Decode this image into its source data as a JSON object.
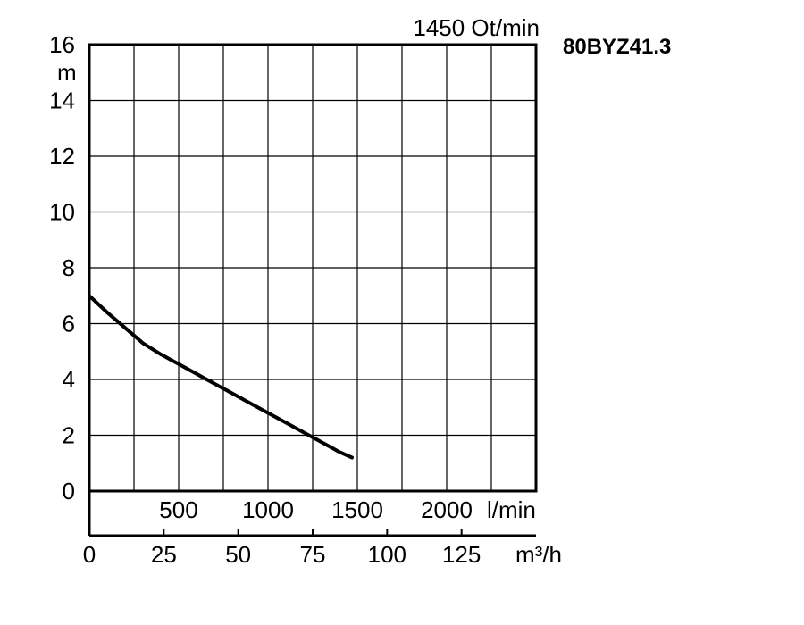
{
  "chart_data": {
    "type": "line",
    "title": "80BYZ41.3",
    "speed_label": "1450 Ot/min",
    "ylabel": "m",
    "y_ticks": [
      "0",
      "2",
      "4",
      "6",
      "8",
      "10",
      "12",
      "14",
      "16"
    ],
    "ylim": [
      0,
      16
    ],
    "x_lmin_label": "l/min",
    "x_lmin_ticks": [
      "500",
      "1000",
      "1500",
      "2000"
    ],
    "x_lmin_tick_values": [
      500,
      1000,
      1500,
      2000
    ],
    "x_m3h_label": "m³/h",
    "x_m3h_ticks": [
      "0",
      "25",
      "50",
      "75",
      "100",
      "125"
    ],
    "x_m3h_tick_values": [
      0,
      25,
      50,
      75,
      100,
      125
    ],
    "xlim_lmin": [
      0,
      2500
    ],
    "grid": true,
    "series": [
      {
        "x_lmin": [
          0,
          100,
          200,
          300,
          400,
          500,
          600,
          700,
          800,
          900,
          1000,
          1100,
          1200,
          1300,
          1400,
          1470
        ],
        "y": [
          7.0,
          6.4,
          5.85,
          5.3,
          4.9,
          4.55,
          4.2,
          3.85,
          3.5,
          3.15,
          2.8,
          2.45,
          2.1,
          1.75,
          1.4,
          1.2
        ]
      }
    ]
  }
}
